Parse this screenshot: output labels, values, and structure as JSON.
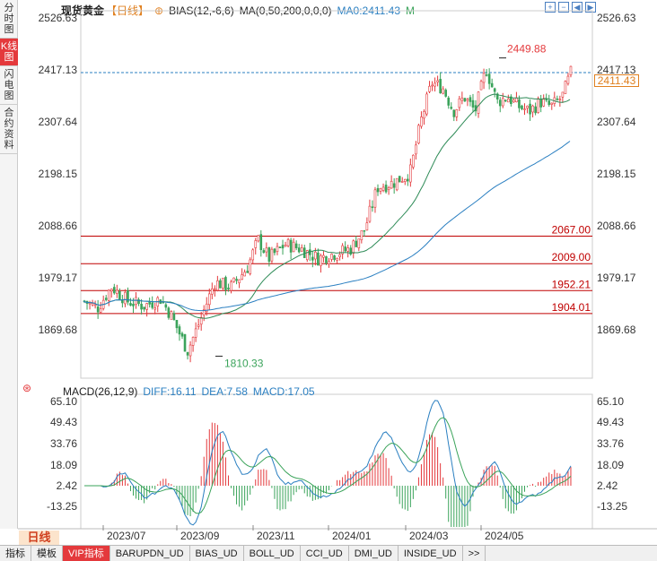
{
  "sidebar": {
    "tabs": [
      {
        "label": "分时图",
        "active": false
      },
      {
        "label": "K线图",
        "active": true
      },
      {
        "label": "闪电图",
        "active": false
      },
      {
        "label": "合约资料",
        "active": false
      }
    ]
  },
  "header": {
    "title": "现货黄金",
    "period": "【日线】",
    "indicator": "BIAS(12,-6,6)",
    "ma_label": "MA(0,50,200,0,0,0)",
    "ma0": "MA0:2411.43",
    "m_label": "M"
  },
  "price_axis": {
    "labels": [
      "2526.63",
      "2417.13",
      "2307.64",
      "2198.15",
      "2088.66",
      "1979.17",
      "1869.68"
    ],
    "current": "2411.43"
  },
  "annotations": {
    "high": "2449.88",
    "low": "1810.33",
    "levels": [
      "2067.00",
      "2009.00",
      "1952.21",
      "1904.01"
    ]
  },
  "macd": {
    "title": "MACD(26,12,9)",
    "diff": "DIFF:16.11",
    "dea": "DEA:7.58",
    "macd": "MACD:17.05",
    "axis_labels": [
      "65.10",
      "49.43",
      "33.76",
      "18.09",
      "2.42",
      "-13.25"
    ]
  },
  "dates": [
    "2023/07",
    "2023/09",
    "2023/11",
    "2024/01",
    "2024/03",
    "2024/05"
  ],
  "period_button": "日线",
  "bottom_tabs": [
    "指标",
    "模板",
    "VIP指标",
    "BARUPDN_UD",
    "BIAS_UD",
    "BOLL_UD",
    "CCI_UD",
    "DMI_UD",
    "INSIDE_UD",
    ">>"
  ],
  "colors": {
    "up": "#e4393c",
    "down": "#3aa35a",
    "ma_line": "#2e8b57",
    "ma200": "#2a7fc1",
    "diff": "#2a7fc1",
    "dea": "#3aa35a"
  }
}
